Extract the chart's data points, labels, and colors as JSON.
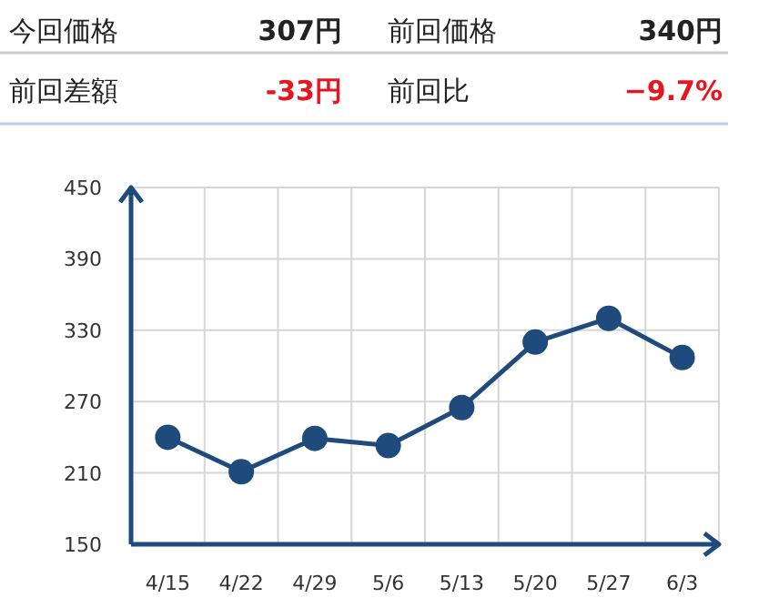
{
  "chart_data": [
    {
      "type": "other",
      "annotations": [
        "今回価格",
        "307円",
        "前回価格",
        "340円",
        "前回差額",
        "-33円",
        "前回比",
        "−9.7%"
      ]
    },
    {
      "type": "line",
      "categories": [
        "4/15",
        "4/22",
        "4/29",
        "5/6",
        "5/13",
        "5/20",
        "5/27",
        "6/3"
      ],
      "series": [
        {
          "color": "#1f4a7c",
          "values": [
            240,
            211,
            239,
            233,
            265,
            320,
            340,
            307
          ]
        }
      ],
      "ylim": [
        150,
        450
      ],
      "yticks": [
        150,
        210,
        270,
        330,
        390,
        450
      ],
      "grid": true,
      "marker": "circle",
      "line_style": "solid"
    }
  ]
}
